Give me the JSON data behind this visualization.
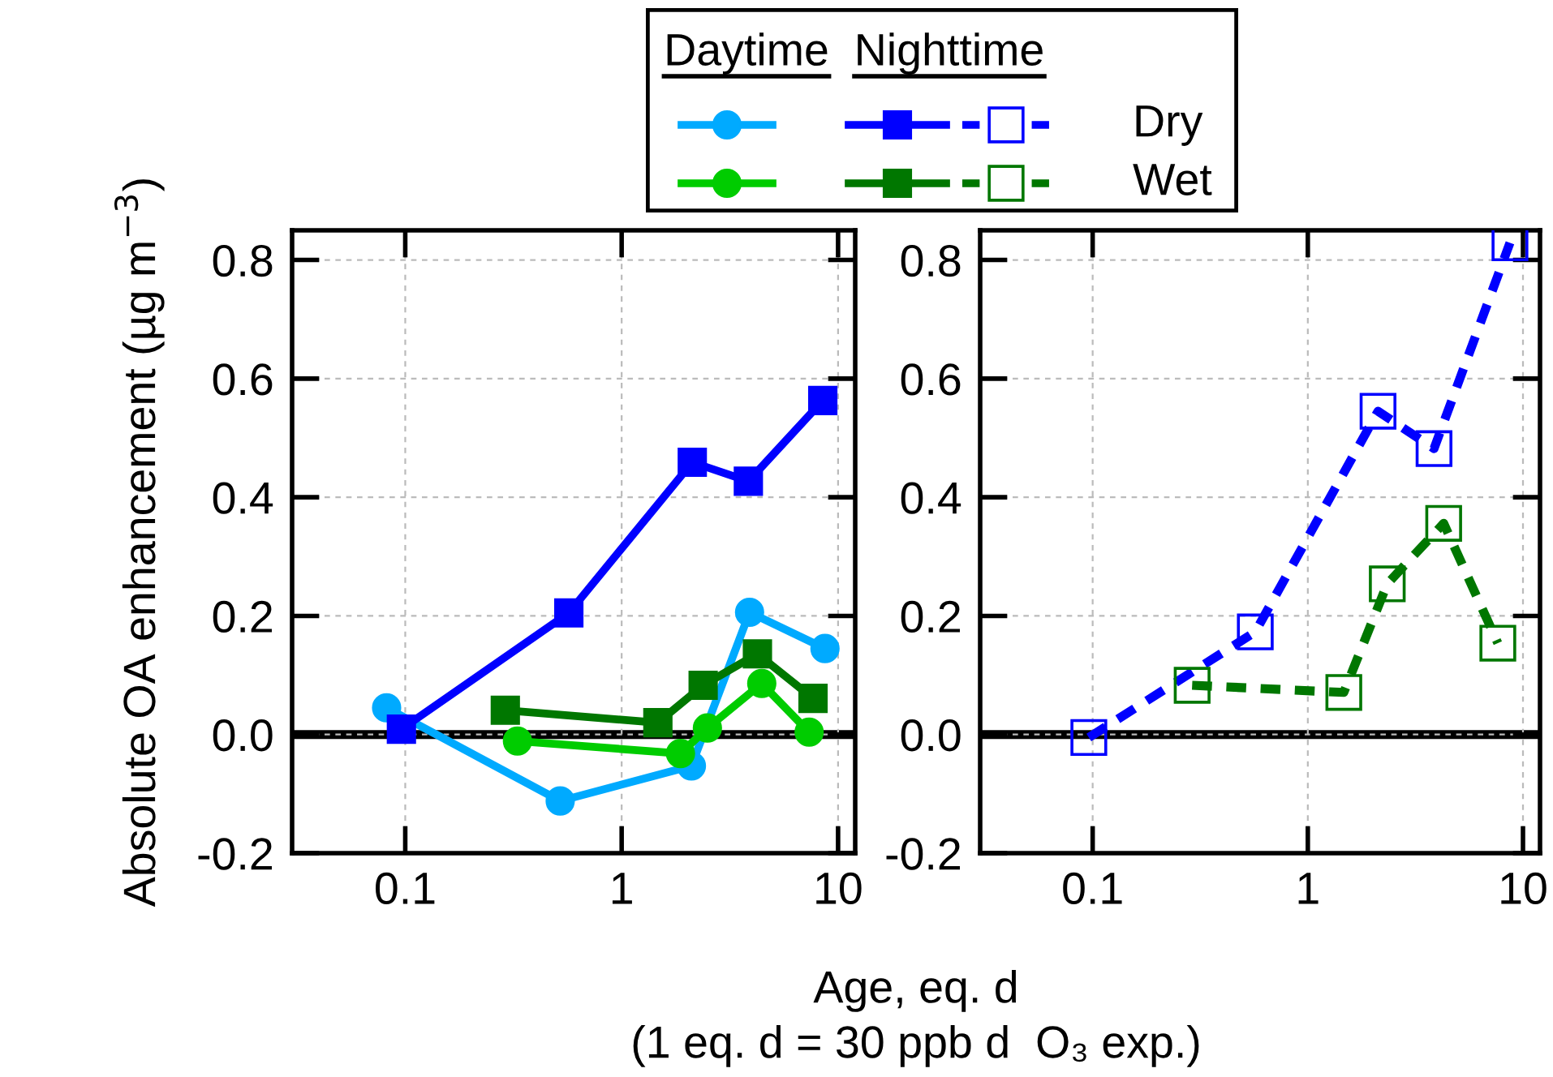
{
  "chart_data": [
    {
      "type": "line",
      "xlabel": "Age, eq. d\n(1 eq. d = 30 ppb d  O₃ exp.)",
      "ylabel": "Absolute OA enhancement (µg m$^{−3}$)",
      "log": "x",
      "xlim": [
        0.03,
        12
      ],
      "xticks": [
        0.1,
        1,
        10
      ],
      "ylim": [
        -0.2,
        0.85
      ],
      "yticks": [
        -0.2,
        {
          "value": 0,
          "label": "0.0"
        },
        0.2,
        0.4,
        0.6,
        0.8
      ],
      "grid": true,
      "legend": "top",
      "line_style": "solid",
      "annotations": [
        "Daytime",
        "Nighttime"
      ],
      "ref_lines": [
        {
          "axis": "y",
          "value": 0,
          "color": "#000000"
        }
      ],
      "series": [
        {
          "color": "#00aaff",
          "marker": "circle",
          "x": [
            0.082,
            0.52,
            2.1,
            3.9,
            8.7
          ],
          "values": [
            0.045,
            -0.112,
            -0.053,
            0.206,
            0.145
          ]
        },
        {
          "color": "#00cc00",
          "marker": "circle",
          "x": [
            0.33,
            1.87,
            2.49,
            4.44,
            7.35
          ],
          "values": [
            -0.011,
            -0.032,
            0.011,
            0.086,
            0.004
          ]
        },
        {
          "name": "Dry",
          "color": "#0000ff",
          "marker": "square",
          "x": [
            0.096,
            0.57,
            2.12,
            3.85,
            8.5
          ],
          "values": [
            0.009,
            0.205,
            0.459,
            0.427,
            0.563
          ]
        },
        {
          "name": "Wet",
          "color": "#007700",
          "marker": "square",
          "x": [
            0.29,
            1.47,
            2.38,
            4.24,
            7.66
          ],
          "values": [
            0.041,
            0.02,
            0.083,
            0.136,
            0.061
          ]
        }
      ]
    },
    {
      "type": "line",
      "log": "x",
      "xlim": [
        0.03,
        12
      ],
      "xticks": [
        0.1,
        1,
        10
      ],
      "ylim": [
        -0.2,
        0.85
      ],
      "yticks": [
        -0.2,
        {
          "value": 0,
          "label": "0.0"
        },
        0.2,
        0.4,
        0.6,
        0.8
      ],
      "grid": true,
      "line_style": "dashed",
      "ref_lines": [
        {
          "axis": "y",
          "value": 0,
          "color": "#000000"
        }
      ],
      "series": [
        {
          "color": "#0000ff",
          "marker": "square",
          "x": [
            0.096,
            0.57,
            2.12,
            3.86,
            8.7
          ],
          "values": [
            -0.005,
            0.173,
            0.545,
            0.482,
            0.829
          ]
        },
        {
          "color": "#007700",
          "marker": "square",
          "x": [
            0.29,
            1.47,
            2.34,
            4.28,
            7.64
          ],
          "values": [
            0.083,
            0.071,
            0.254,
            0.356,
            0.154
          ]
        }
      ]
    }
  ]
}
